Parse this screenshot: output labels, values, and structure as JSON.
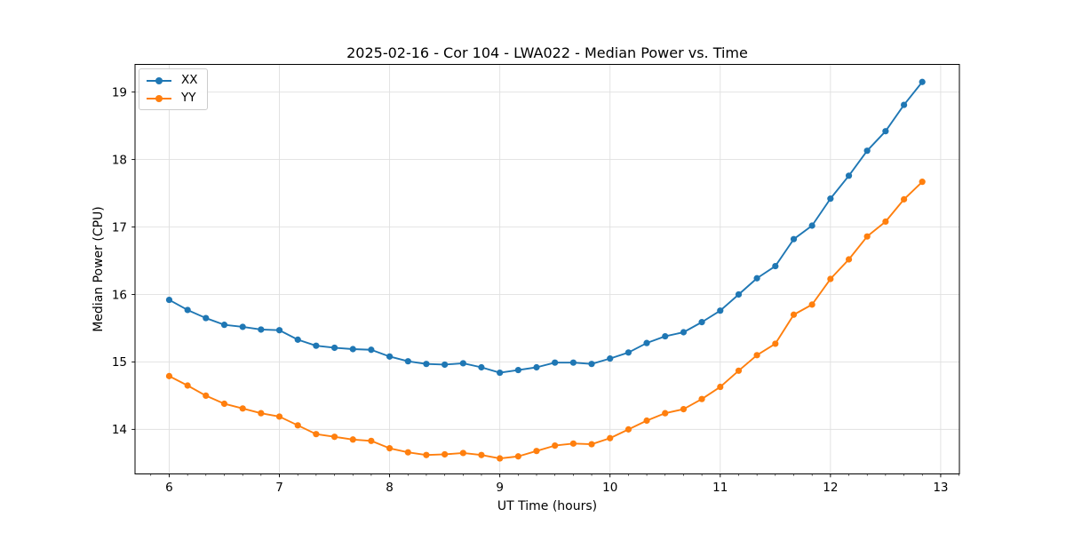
{
  "chart_data": {
    "type": "line",
    "title": "2025-02-16 - Cor 104 - LWA022 - Median Power vs. Time",
    "xlabel": "UT Time (hours)",
    "ylabel": "Median Power (CPU)",
    "xlim": [
      5.69,
      13.17
    ],
    "ylim": [
      13.34,
      19.41
    ],
    "xticks": [
      6,
      7,
      8,
      9,
      10,
      11,
      12,
      13
    ],
    "yticks": [
      14,
      15,
      16,
      17,
      18,
      19
    ],
    "x_minor_tick_step": 0.166667,
    "grid": true,
    "legend_position": "upper left",
    "x": [
      6,
      6.167,
      6.333,
      6.5,
      6.667,
      6.833,
      7,
      7.167,
      7.333,
      7.5,
      7.667,
      7.833,
      8,
      8.167,
      8.333,
      8.5,
      8.667,
      8.833,
      9,
      9.167,
      9.333,
      9.5,
      9.667,
      9.833,
      10,
      10.167,
      10.333,
      10.5,
      10.667,
      10.833,
      11,
      11.167,
      11.333,
      11.5,
      11.667,
      11.833,
      12,
      12.167,
      12.333,
      12.5,
      12.667,
      12.833
    ],
    "series": [
      {
        "name": "XX",
        "color": "#1f77b4",
        "values": [
          15.92,
          15.77,
          15.65,
          15.55,
          15.52,
          15.48,
          15.47,
          15.33,
          15.24,
          15.21,
          15.19,
          15.18,
          15.08,
          15.01,
          14.97,
          14.96,
          14.98,
          14.92,
          14.84,
          14.88,
          14.92,
          14.99,
          14.99,
          14.97,
          15.05,
          15.14,
          15.28,
          15.38,
          15.44,
          15.59,
          15.76,
          16.0,
          16.24,
          16.42,
          16.82,
          17.02,
          17.42,
          17.76,
          18.13,
          18.42,
          18.81,
          19.15
        ]
      },
      {
        "name": "YY",
        "color": "#ff7f0e",
        "values": [
          14.79,
          14.65,
          14.5,
          14.38,
          14.31,
          14.24,
          14.19,
          14.06,
          13.93,
          13.89,
          13.85,
          13.83,
          13.72,
          13.66,
          13.62,
          13.63,
          13.65,
          13.62,
          13.57,
          13.6,
          13.68,
          13.76,
          13.79,
          13.78,
          13.87,
          14.0,
          14.13,
          14.24,
          14.3,
          14.45,
          14.63,
          14.87,
          15.1,
          15.27,
          15.7,
          15.85,
          16.23,
          16.52,
          16.86,
          17.08,
          17.41,
          17.67
        ]
      }
    ],
    "colors": {
      "grid": "#e0e0e0",
      "spine": "#000000",
      "tick_text": "#000000"
    }
  }
}
